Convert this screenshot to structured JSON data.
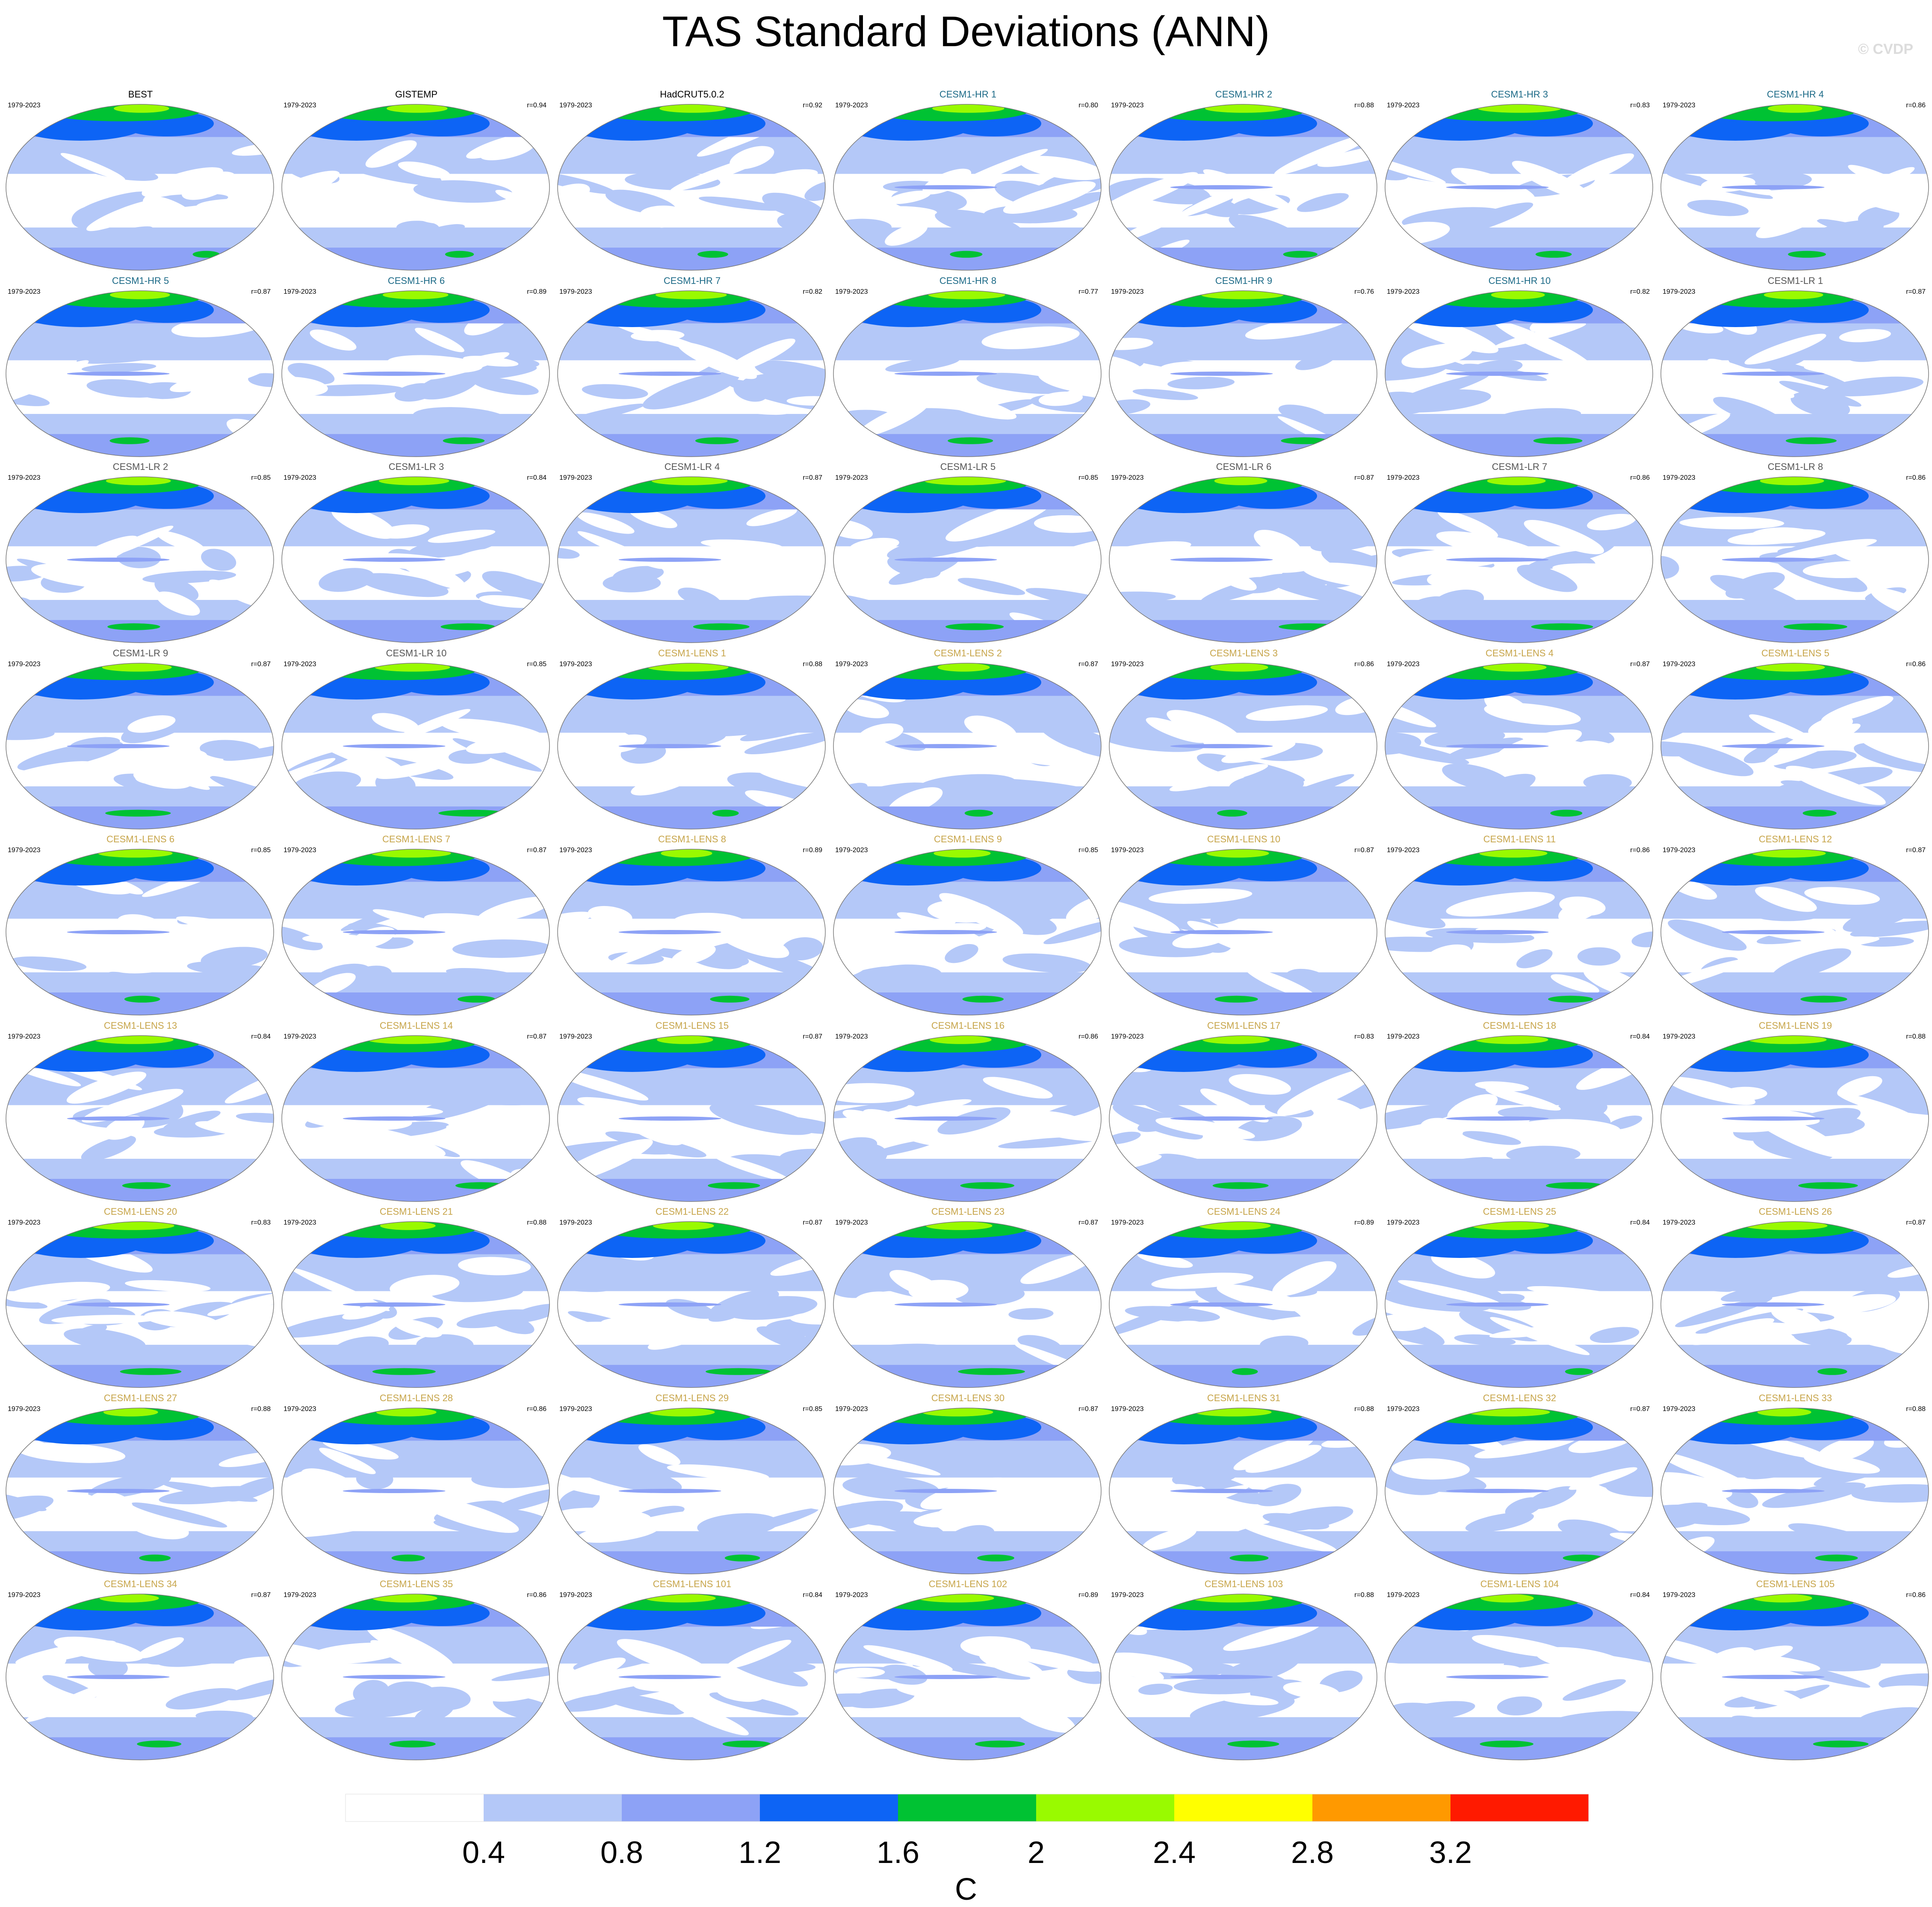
{
  "title": "TAS Standard Deviations (ANN)",
  "watermark": "© CVDP",
  "colors": {
    "obs_name": "#000000",
    "hr_name": "#1c6a87",
    "lr_name": "#555555",
    "lens_name": "#c7a54a"
  },
  "chart_data": {
    "type": "heatmap",
    "projection": "robinson-like global map panels",
    "years": "1979-2023",
    "panels": [
      {
        "name": "BEST",
        "group": "obs",
        "r": ""
      },
      {
        "name": "GISTEMP",
        "group": "obs",
        "r": "r=0.94"
      },
      {
        "name": "HadCRUT5.0.2",
        "group": "obs",
        "r": "r=0.92"
      },
      {
        "name": "CESM1-HR 1",
        "group": "hr",
        "r": "r=0.80"
      },
      {
        "name": "CESM1-HR 2",
        "group": "hr",
        "r": "r=0.88"
      },
      {
        "name": "CESM1-HR 3",
        "group": "hr",
        "r": "r=0.83"
      },
      {
        "name": "CESM1-HR 4",
        "group": "hr",
        "r": "r=0.86"
      },
      {
        "name": "CESM1-HR 5",
        "group": "hr",
        "r": "r=0.87"
      },
      {
        "name": "CESM1-HR 6",
        "group": "hr",
        "r": "r=0.89"
      },
      {
        "name": "CESM1-HR 7",
        "group": "hr",
        "r": "r=0.82"
      },
      {
        "name": "CESM1-HR 8",
        "group": "hr",
        "r": "r=0.77"
      },
      {
        "name": "CESM1-HR 9",
        "group": "hr",
        "r": "r=0.76"
      },
      {
        "name": "CESM1-HR 10",
        "group": "hr",
        "r": "r=0.82"
      },
      {
        "name": "CESM1-LR 1",
        "group": "lr",
        "r": "r=0.87"
      },
      {
        "name": "CESM1-LR 2",
        "group": "lr",
        "r": "r=0.85"
      },
      {
        "name": "CESM1-LR 3",
        "group": "lr",
        "r": "r=0.84"
      },
      {
        "name": "CESM1-LR 4",
        "group": "lr",
        "r": "r=0.87"
      },
      {
        "name": "CESM1-LR 5",
        "group": "lr",
        "r": "r=0.85"
      },
      {
        "name": "CESM1-LR 6",
        "group": "lr",
        "r": "r=0.87"
      },
      {
        "name": "CESM1-LR 7",
        "group": "lr",
        "r": "r=0.86"
      },
      {
        "name": "CESM1-LR 8",
        "group": "lr",
        "r": "r=0.86"
      },
      {
        "name": "CESM1-LR 9",
        "group": "lr",
        "r": "r=0.87"
      },
      {
        "name": "CESM1-LR 10",
        "group": "lr",
        "r": "r=0.85"
      },
      {
        "name": "CESM1-LENS 1",
        "group": "lens",
        "r": "r=0.88"
      },
      {
        "name": "CESM1-LENS 2",
        "group": "lens",
        "r": "r=0.87"
      },
      {
        "name": "CESM1-LENS 3",
        "group": "lens",
        "r": "r=0.86"
      },
      {
        "name": "CESM1-LENS 4",
        "group": "lens",
        "r": "r=0.87"
      },
      {
        "name": "CESM1-LENS 5",
        "group": "lens",
        "r": "r=0.86"
      },
      {
        "name": "CESM1-LENS 6",
        "group": "lens",
        "r": "r=0.85"
      },
      {
        "name": "CESM1-LENS 7",
        "group": "lens",
        "r": "r=0.87"
      },
      {
        "name": "CESM1-LENS 8",
        "group": "lens",
        "r": "r=0.89"
      },
      {
        "name": "CESM1-LENS 9",
        "group": "lens",
        "r": "r=0.85"
      },
      {
        "name": "CESM1-LENS 10",
        "group": "lens",
        "r": "r=0.87"
      },
      {
        "name": "CESM1-LENS 11",
        "group": "lens",
        "r": "r=0.86"
      },
      {
        "name": "CESM1-LENS 12",
        "group": "lens",
        "r": "r=0.87"
      },
      {
        "name": "CESM1-LENS 13",
        "group": "lens",
        "r": "r=0.84"
      },
      {
        "name": "CESM1-LENS 14",
        "group": "lens",
        "r": "r=0.87"
      },
      {
        "name": "CESM1-LENS 15",
        "group": "lens",
        "r": "r=0.87"
      },
      {
        "name": "CESM1-LENS 16",
        "group": "lens",
        "r": "r=0.86"
      },
      {
        "name": "CESM1-LENS 17",
        "group": "lens",
        "r": "r=0.83"
      },
      {
        "name": "CESM1-LENS 18",
        "group": "lens",
        "r": "r=0.84"
      },
      {
        "name": "CESM1-LENS 19",
        "group": "lens",
        "r": "r=0.88"
      },
      {
        "name": "CESM1-LENS 20",
        "group": "lens",
        "r": "r=0.83"
      },
      {
        "name": "CESM1-LENS 21",
        "group": "lens",
        "r": "r=0.88"
      },
      {
        "name": "CESM1-LENS 22",
        "group": "lens",
        "r": "r=0.87"
      },
      {
        "name": "CESM1-LENS 23",
        "group": "lens",
        "r": "r=0.87"
      },
      {
        "name": "CESM1-LENS 24",
        "group": "lens",
        "r": "r=0.89"
      },
      {
        "name": "CESM1-LENS 25",
        "group": "lens",
        "r": "r=0.84"
      },
      {
        "name": "CESM1-LENS 26",
        "group": "lens",
        "r": "r=0.87"
      },
      {
        "name": "CESM1-LENS 27",
        "group": "lens",
        "r": "r=0.88"
      },
      {
        "name": "CESM1-LENS 28",
        "group": "lens",
        "r": "r=0.86"
      },
      {
        "name": "CESM1-LENS 29",
        "group": "lens",
        "r": "r=0.85"
      },
      {
        "name": "CESM1-LENS 30",
        "group": "lens",
        "r": "r=0.87"
      },
      {
        "name": "CESM1-LENS 31",
        "group": "lens",
        "r": "r=0.88"
      },
      {
        "name": "CESM1-LENS 32",
        "group": "lens",
        "r": "r=0.87"
      },
      {
        "name": "CESM1-LENS 33",
        "group": "lens",
        "r": "r=0.88"
      },
      {
        "name": "CESM1-LENS 34",
        "group": "lens",
        "r": "r=0.87"
      },
      {
        "name": "CESM1-LENS 35",
        "group": "lens",
        "r": "r=0.86"
      },
      {
        "name": "CESM1-LENS 101",
        "group": "lens",
        "r": "r=0.84"
      },
      {
        "name": "CESM1-LENS 102",
        "group": "lens",
        "r": "r=0.89"
      },
      {
        "name": "CESM1-LENS 103",
        "group": "lens",
        "r": "r=0.88"
      },
      {
        "name": "CESM1-LENS 104",
        "group": "lens",
        "r": "r=0.84"
      },
      {
        "name": "CESM1-LENS 105",
        "group": "lens",
        "r": "r=0.86"
      }
    ],
    "colorbar": {
      "units": "C",
      "ticks": [
        "0.4",
        "0.8",
        "1.2",
        "1.6",
        "2",
        "2.4",
        "2.8",
        "3.2"
      ],
      "bins": [
        {
          "upper": 0.4,
          "color": "#ffffff"
        },
        {
          "upper": 0.8,
          "color": "#b4c8f8"
        },
        {
          "upper": 1.2,
          "color": "#8da2f6"
        },
        {
          "upper": 1.6,
          "color": "#0d64f5"
        },
        {
          "upper": 2.0,
          "color": "#00c233"
        },
        {
          "upper": 2.4,
          "color": "#99fa00"
        },
        {
          "upper": 2.8,
          "color": "#ffff00"
        },
        {
          "upper": 3.2,
          "color": "#ff9900"
        },
        {
          "upper": null,
          "color": "#ff1a00"
        }
      ]
    }
  }
}
